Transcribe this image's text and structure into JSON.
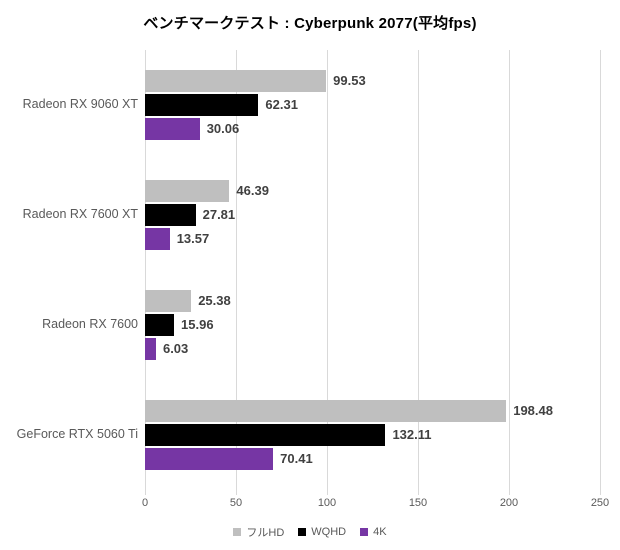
{
  "title": "ベンチマークテスト : Cyberpunk 2077(平均fps)",
  "chart_data": {
    "type": "bar",
    "orientation": "horizontal",
    "title": "ベンチマークテスト : Cyberpunk 2077(平均fps)",
    "categories": [
      "Radeon RX 9060 XT",
      "Radeon RX 7600 XT",
      "Radeon RX 7600",
      "GeForce RTX 5060 Ti"
    ],
    "series": [
      {
        "name": "フルHD",
        "color": "#bfbfbf",
        "values": [
          99.53,
          46.39,
          25.38,
          198.48
        ]
      },
      {
        "name": "WQHD",
        "color": "#000000",
        "values": [
          62.31,
          27.81,
          15.96,
          132.11
        ]
      },
      {
        "name": "4K",
        "color": "#7636a4",
        "values": [
          30.06,
          13.57,
          6.03,
          70.41
        ]
      }
    ],
    "xlabel": "",
    "ylabel": "",
    "xlim": [
      0,
      250
    ],
    "x_ticks": [
      0,
      50,
      100,
      150,
      200,
      250
    ],
    "grid": true,
    "value_labels": true,
    "legend_position": "bottom"
  },
  "colors": {
    "gridline": "#d9d9d9",
    "tick_label": "#595959",
    "category_label": "#595959",
    "value_label": "#404040",
    "title": "#000000",
    "background": "#ffffff"
  }
}
